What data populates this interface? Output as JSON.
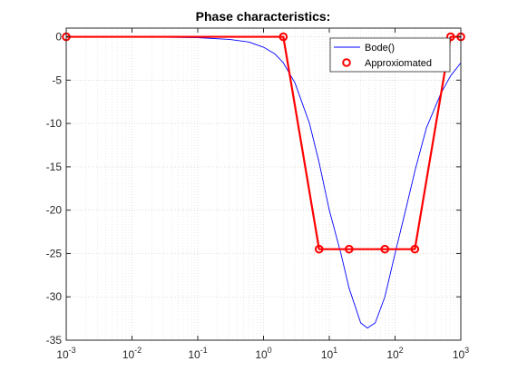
{
  "chart_data": {
    "type": "line",
    "title": "Phase characteristics:",
    "xlabel": "",
    "ylabel": "",
    "xscale": "log",
    "xlim": [
      0.001,
      1000
    ],
    "ylim": [
      -35,
      1
    ],
    "grid": "on (log minor, dotted)",
    "legend_position": "top-right",
    "x_tick_labels": [
      {
        "base": "10",
        "exp": "-3"
      },
      {
        "base": "10",
        "exp": "-2"
      },
      {
        "base": "10",
        "exp": "-1"
      },
      {
        "base": "10",
        "exp": "0"
      },
      {
        "base": "10",
        "exp": "1"
      },
      {
        "base": "10",
        "exp": "2"
      },
      {
        "base": "10",
        "exp": "3"
      }
    ],
    "y_ticks": [
      0,
      -5,
      -10,
      -15,
      -20,
      -25,
      -30,
      -35
    ],
    "y_tick_labels": [
      "0",
      "-5",
      "-10",
      "-15",
      "-20",
      "-25",
      "-30",
      "-35"
    ],
    "series": [
      {
        "name": "Bode()",
        "color": "#0000ff",
        "style": "line",
        "x": [
          0.001,
          0.01,
          0.1,
          0.3,
          0.6,
          1,
          1.5,
          2,
          3,
          5,
          7,
          10,
          15,
          20,
          30,
          38,
          50,
          70,
          100,
          150,
          200,
          300,
          500,
          700,
          1000
        ],
        "y": [
          0,
          0,
          -0.1,
          -0.3,
          -0.6,
          -1.2,
          -2,
          -3,
          -5.3,
          -10,
          -14.5,
          -20,
          -25,
          -29,
          -33,
          -33.6,
          -33,
          -30,
          -25,
          -19.5,
          -15.5,
          -10.5,
          -6.5,
          -4.5,
          -3
        ]
      },
      {
        "name": "Approxiomated",
        "color": "#ff0000",
        "style": "line+circle",
        "x": [
          0.001,
          2,
          7,
          20,
          70,
          200,
          700,
          1000
        ],
        "y": [
          0,
          0,
          -24.5,
          -24.5,
          -24.5,
          -24.5,
          0,
          0
        ]
      }
    ]
  }
}
